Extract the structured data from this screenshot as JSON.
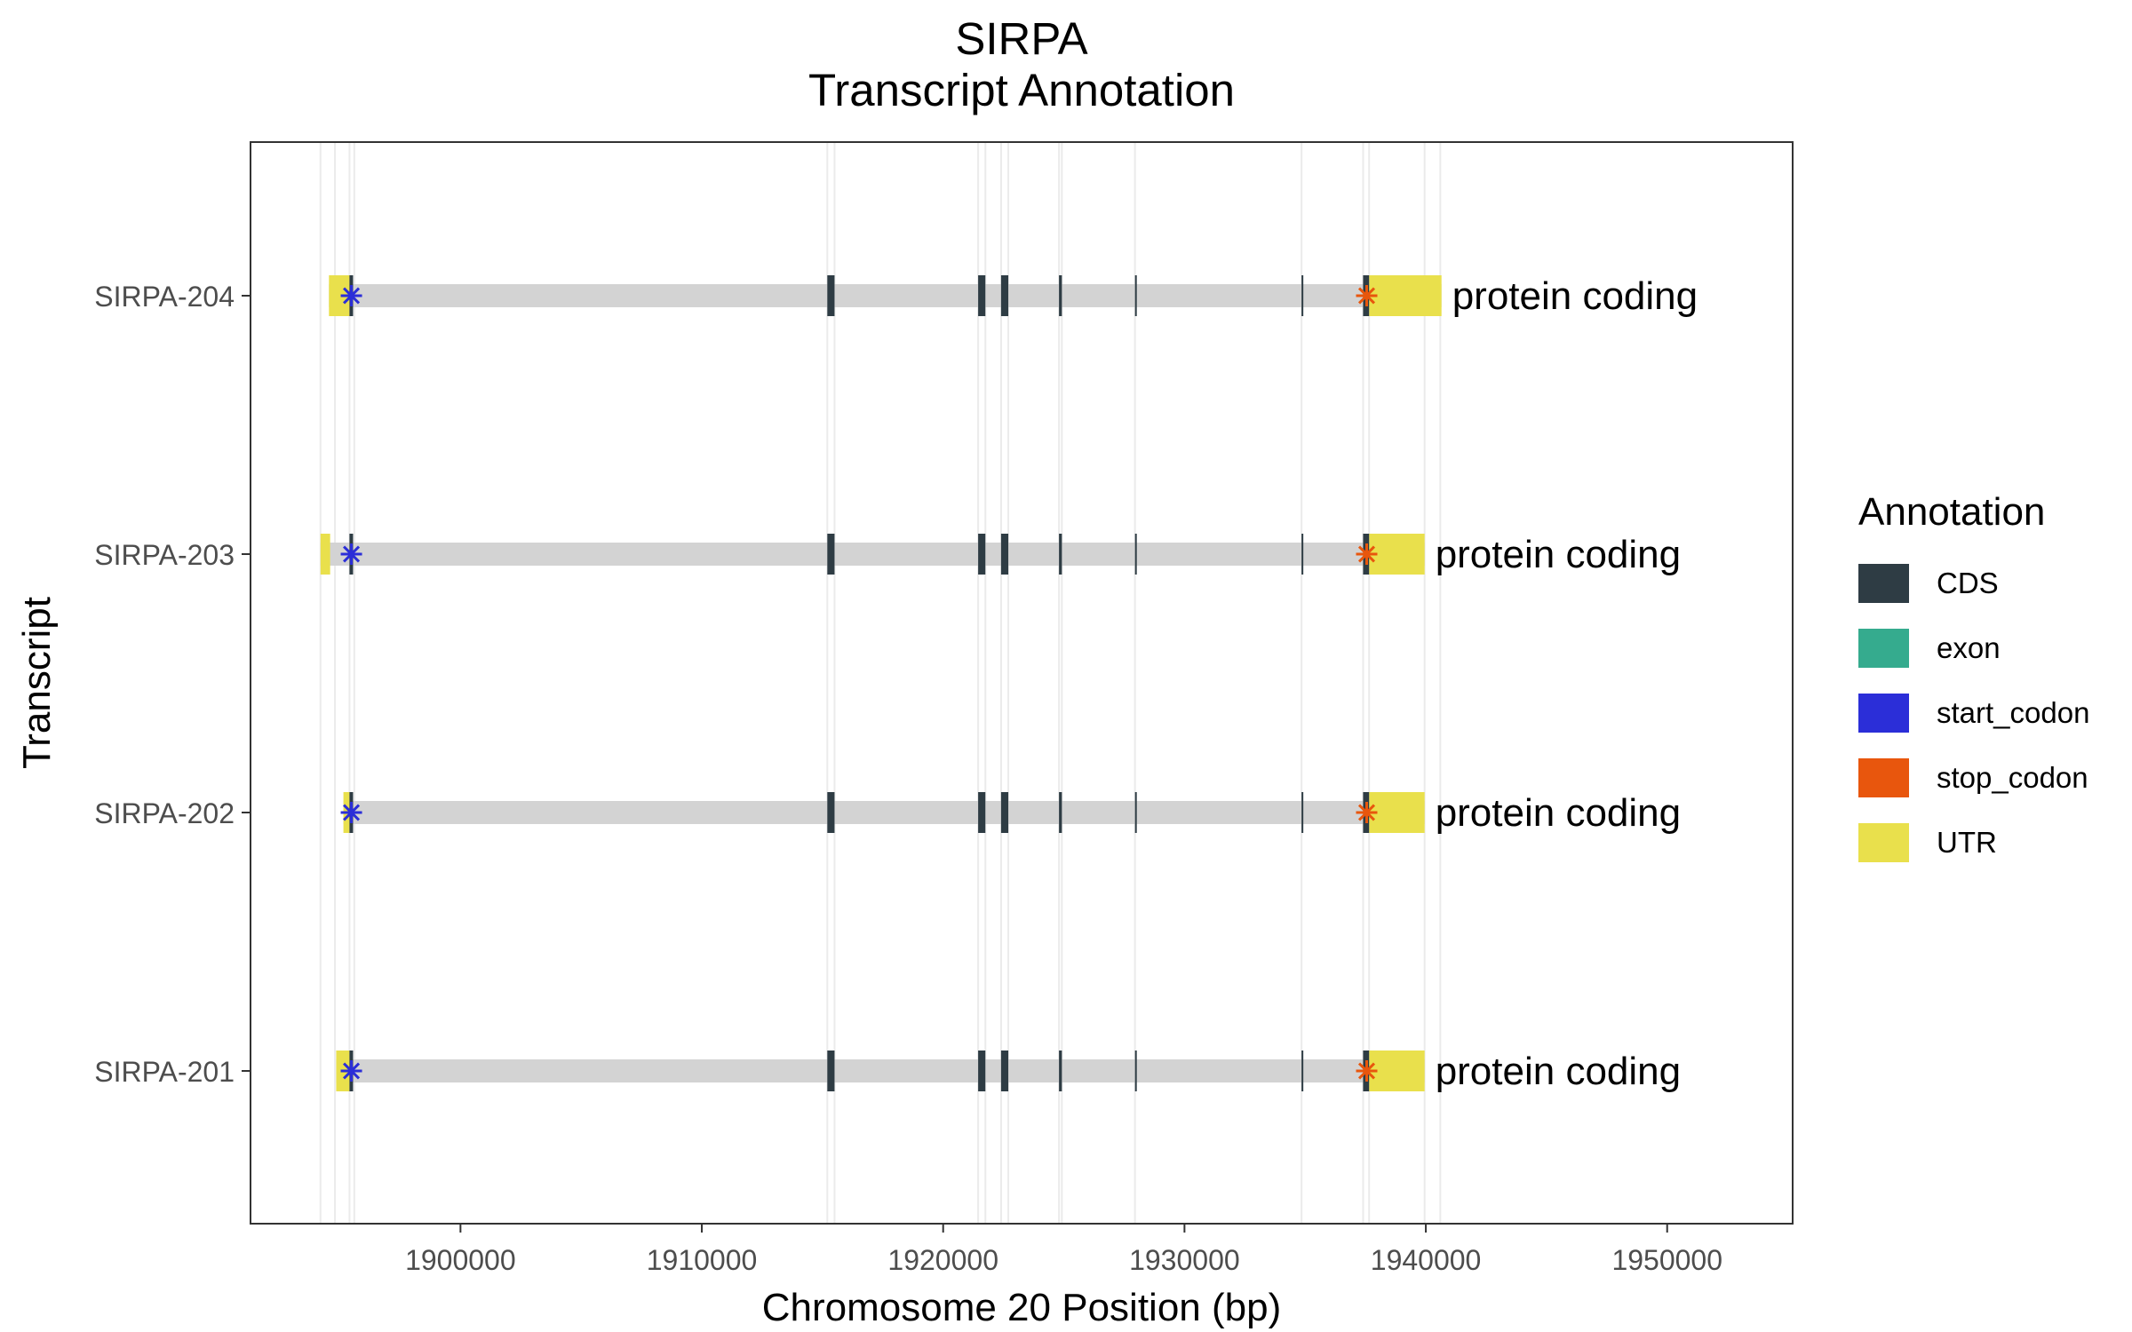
{
  "chart_data": {
    "type": "gene-structure",
    "title": "SIRPA",
    "subtitle": "Transcript Annotation",
    "xlabel": "Chromosome 20 Position (bp)",
    "ylabel": "Transcript",
    "xlim": [
      1891300,
      1955200
    ],
    "x_ticks": [
      1900000,
      1910000,
      1920000,
      1930000,
      1940000,
      1950000
    ],
    "grid": "vertical at feature boundaries",
    "legend": {
      "title": "Annotation",
      "position": "right",
      "entries": [
        {
          "name": "CDS",
          "color": "#2e3c44"
        },
        {
          "name": "exon",
          "color": "#35ab8e"
        },
        {
          "name": "start_codon",
          "color": "#2b2ed8"
        },
        {
          "name": "stop_codon",
          "color": "#e8560d"
        },
        {
          "name": "UTR",
          "color": "#e9e04c"
        }
      ]
    },
    "intron_color": "#d3d3d3",
    "cds_exons": [
      [
        1895400,
        1895550
      ],
      [
        1915200,
        1915500
      ],
      [
        1921450,
        1921750
      ],
      [
        1922400,
        1922700
      ],
      [
        1924800,
        1924920
      ],
      [
        1927950,
        1928000
      ],
      [
        1934850,
        1934900
      ],
      [
        1937400,
        1937650
      ]
    ],
    "gridlines": [
      1894200,
      1894800,
      1895400,
      1895600,
      1915200,
      1915500,
      1921450,
      1921750,
      1922400,
      1922700,
      1924800,
      1924920,
      1927950,
      1934850,
      1937400,
      1937650,
      1939950,
      1940600
    ],
    "transcripts": [
      {
        "name": "SIRPA-204",
        "type": "protein coding",
        "start": 1894550,
        "end": 1940650,
        "utr": [
          [
            1894550,
            1895400
          ],
          [
            1937650,
            1940650
          ]
        ],
        "start_codon": 1895480,
        "stop_codon": 1937550
      },
      {
        "name": "SIRPA-203",
        "type": "protein coding",
        "start": 1894200,
        "end": 1939950,
        "utr": [
          [
            1894200,
            1894600
          ],
          [
            1937650,
            1939950
          ]
        ],
        "start_codon": 1895480,
        "stop_codon": 1937550
      },
      {
        "name": "SIRPA-202",
        "type": "protein coding",
        "start": 1895150,
        "end": 1939950,
        "utr": [
          [
            1895150,
            1895400
          ],
          [
            1937650,
            1939950
          ]
        ],
        "start_codon": 1895480,
        "stop_codon": 1937550
      },
      {
        "name": "SIRPA-201",
        "type": "protein coding",
        "start": 1894850,
        "end": 1939950,
        "utr": [
          [
            1894850,
            1895400
          ],
          [
            1937650,
            1939950
          ]
        ],
        "start_codon": 1895480,
        "stop_codon": 1937550
      }
    ]
  }
}
